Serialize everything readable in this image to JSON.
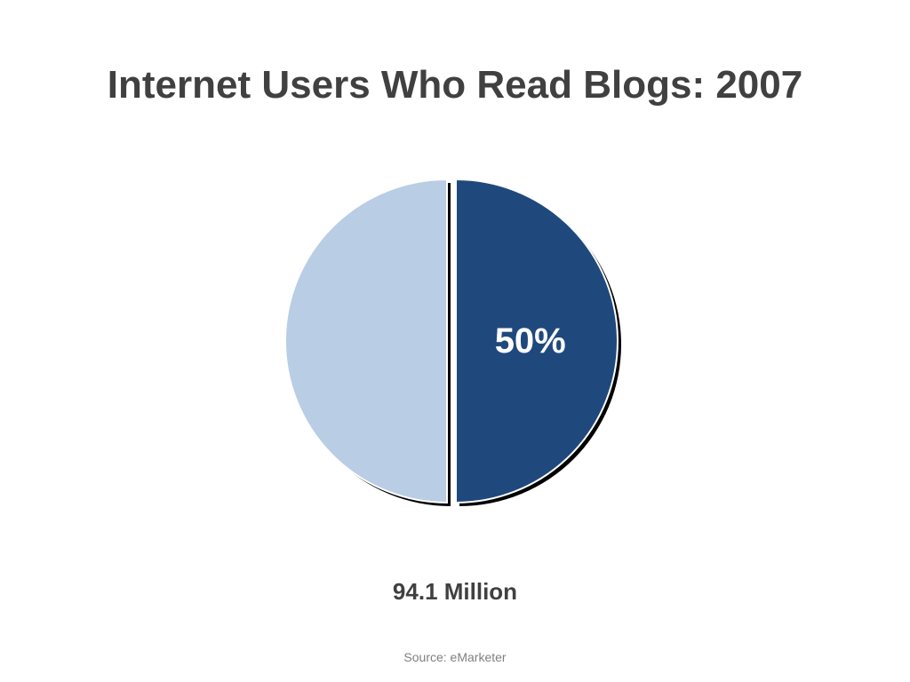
{
  "slide": {
    "title": "Internet Users Who Read Blogs: 2007",
    "caption": "94.1 Million",
    "source": "Source: eMarketer"
  },
  "chart_data": {
    "type": "pie",
    "title": "Internet Users Who Read Blogs: 2007",
    "slices": [
      {
        "value": 50,
        "label": "50%",
        "color": "#1f497d",
        "exploded": true
      },
      {
        "value": 50,
        "label": "",
        "color": "#b9cde5",
        "exploded": false
      }
    ],
    "legend": "none"
  }
}
